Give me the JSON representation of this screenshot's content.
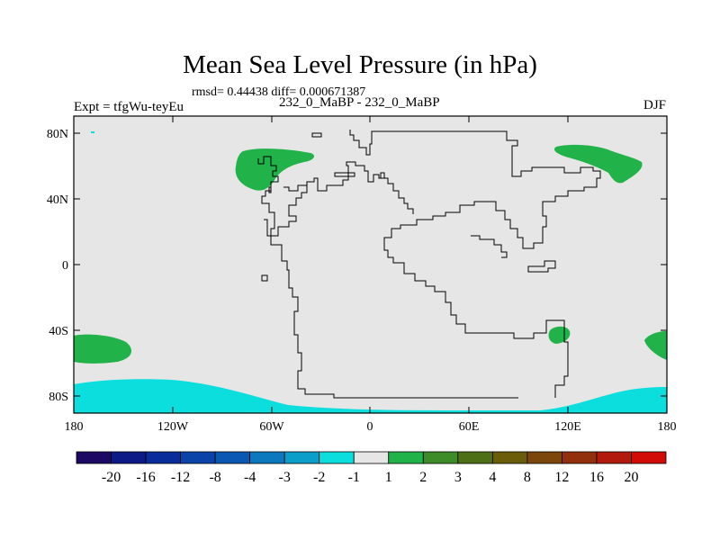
{
  "title": "Mean Sea Level Pressure (in hPa)",
  "stats": "rmsd= 0.44438 diff= 0.000671387",
  "left_label": "Expt = tfgWu-teyEu",
  "center_label": "232_0_MaBP - 232_0_MaBP",
  "right_label": "DJF",
  "chart_data": {
    "type": "heatmap",
    "title": "Mean Sea Level Pressure (in hPa)",
    "subtitle": "rmsd= 0.44438 diff= 0.000671387",
    "x_tick_labels": [
      "180",
      "120W",
      "60W",
      "0",
      "60E",
      "120E",
      "180"
    ],
    "y_tick_labels": [
      "80N",
      "40N",
      "0",
      "40S",
      "80S"
    ],
    "xlim": [
      -180,
      180
    ],
    "ylim": [
      -90,
      90
    ],
    "colorbar": {
      "labels": [
        "-20",
        "-16",
        "-12",
        "-8",
        "-4",
        "-3",
        "-2",
        "-1",
        "1",
        "2",
        "3",
        "4",
        "8",
        "12",
        "16",
        "20"
      ],
      "colors": [
        "#1d0863",
        "#0b1a86",
        "#082d9a",
        "#0a44a8",
        "#0b58b2",
        "#0c78bd",
        "#0a9ec9",
        "#0bdedd",
        "#e6e6e6",
        "#22b24a",
        "#3e8b2a",
        "#4f6f16",
        "#6a5c08",
        "#7c470a",
        "#92300d",
        "#b11a0d",
        "#d20b06"
      ]
    },
    "background_value_range": "-1 to 1",
    "regions": [
      {
        "name": "North Atlantic (60W-20W, 40N-70N)",
        "range": "1 to 2"
      },
      {
        "name": "North Pacific (NE Asia, 120E-160E, 45N-70N)",
        "range": "1 to 2"
      },
      {
        "name": "South Pacific (west edge, 50S-65S)",
        "range": "1 to 2"
      },
      {
        "name": "SE Pacific east edge (40S-55S)",
        "range": "1 to 2"
      },
      {
        "name": "Southern Ocean near 110E 40S",
        "range": "1 to 2"
      },
      {
        "name": "Antarctic margin (75S-90S)",
        "range": "-2 to -1"
      }
    ]
  }
}
